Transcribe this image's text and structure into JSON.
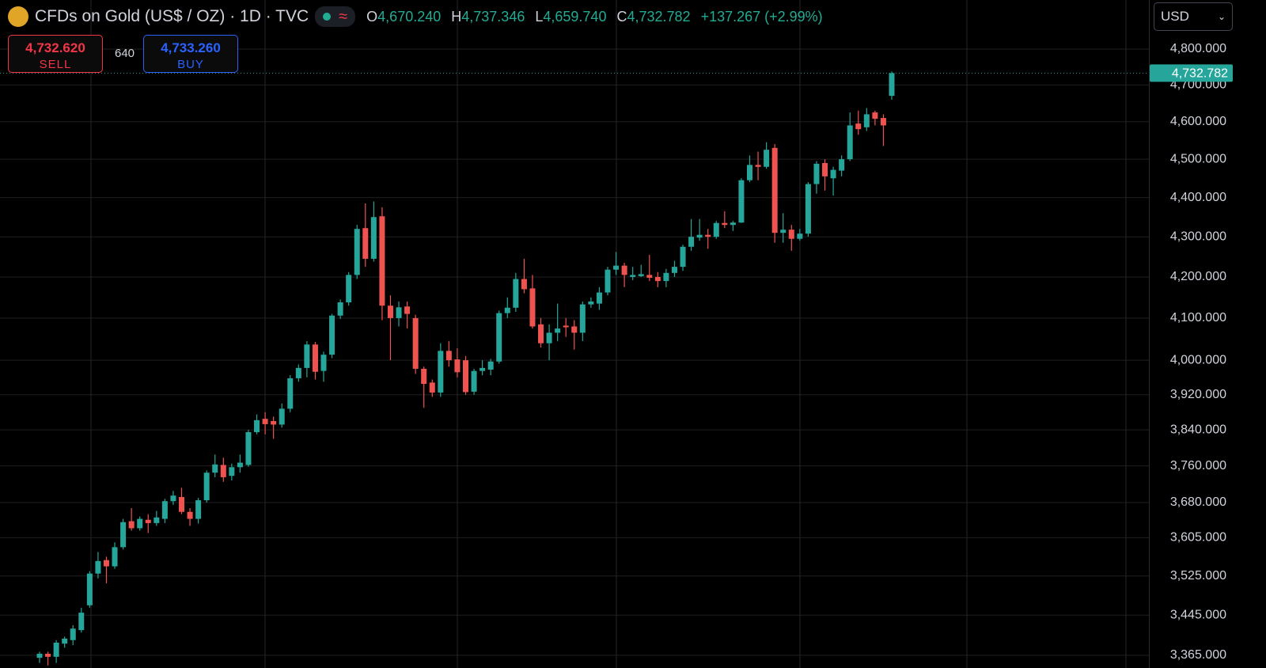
{
  "header": {
    "title": "CFDs on Gold (US$ / OZ) · 1D · TVC",
    "ohlc": [
      {
        "key": "O",
        "value": "4,670.240"
      },
      {
        "key": "H",
        "value": "4,737.346"
      },
      {
        "key": "L",
        "value": "4,659.740"
      },
      {
        "key": "C",
        "value": "4,732.782"
      }
    ],
    "change": "+137.267 (+2.99%)"
  },
  "trade": {
    "sell_price": "4,732.620",
    "sell": "SELL",
    "spread": "640",
    "buy_price": "4,733.260",
    "buy": "BUY"
  },
  "currency": "USD",
  "chart_data": {
    "type": "candlestick",
    "log_scale": true,
    "grid": true,
    "up_color": "#26a69a",
    "down_color": "#ef5350",
    "ylim": [
      3340,
      4940
    ],
    "yticks": [
      {
        "value": 3365,
        "label": "3,365.000"
      },
      {
        "value": 3445,
        "label": "3,445.000"
      },
      {
        "value": 3525,
        "label": "3,525.000"
      },
      {
        "value": 3605,
        "label": "3,605.000"
      },
      {
        "value": 3680,
        "label": "3,680.000"
      },
      {
        "value": 3760,
        "label": "3,760.000"
      },
      {
        "value": 3840,
        "label": "3,840.000"
      },
      {
        "value": 3920,
        "label": "3,920.000"
      },
      {
        "value": 4000,
        "label": "4,000.000"
      },
      {
        "value": 4100,
        "label": "4,100.000"
      },
      {
        "value": 4200,
        "label": "4,200.000"
      },
      {
        "value": 4300,
        "label": "4,300.000"
      },
      {
        "value": 4400,
        "label": "4,400.000"
      },
      {
        "value": 4500,
        "label": "4,500.000"
      },
      {
        "value": 4600,
        "label": "4,600.000"
      },
      {
        "value": 4700,
        "label": "4,700.000"
      },
      {
        "value": 4800,
        "label": "4,800.000"
      }
    ],
    "last_price": {
      "value": 4732.782,
      "label": "4,732.782"
    },
    "open": [
      3360,
      3368,
      3362,
      3388,
      3395,
      3415,
      3465,
      3530,
      3558,
      3545,
      3585,
      3640,
      3625,
      3643,
      3636,
      3645,
      3683,
      3692,
      3660,
      3645,
      3685,
      3745,
      3762,
      3738,
      3757,
      3762,
      3835,
      3865,
      3860,
      3852,
      3888,
      3958,
      3982,
      4037,
      3975,
      4013,
      4106,
      4138,
      4205,
      4322,
      4245,
      4352,
      4130,
      4100,
      4128,
      4100,
      3980,
      3948,
      3925,
      4022,
      4002,
      4000,
      3927,
      3975,
      3978,
      3997,
      4112,
      4125,
      4195,
      4172,
      4085,
      4040,
      4065,
      4082,
      4080,
      4065,
      4133,
      4135,
      4162,
      4218,
      4228,
      4200,
      4202,
      4205,
      4200,
      4190,
      4210,
      4225,
      4275,
      4298,
      4305,
      4300,
      4335,
      4330,
      4336,
      4445,
      4485,
      4480,
      4530,
      4310,
      4318,
      4295,
      4308,
      4435,
      4490,
      4450,
      4470,
      4500,
      4595,
      4585,
      4625,
      4610,
      4670.24
    ],
    "high": [
      3372,
      3372,
      3395,
      3402,
      3425,
      3460,
      3535,
      3575,
      3565,
      3595,
      3645,
      3668,
      3650,
      3655,
      3662,
      3688,
      3705,
      3712,
      3668,
      3690,
      3750,
      3785,
      3778,
      3765,
      3785,
      3840,
      3875,
      3880,
      3870,
      3900,
      3965,
      3990,
      4045,
      4043,
      4020,
      4110,
      4145,
      4212,
      4330,
      4385,
      4390,
      4375,
      4155,
      4140,
      4140,
      4108,
      3985,
      3955,
      4040,
      4045,
      4028,
      4010,
      3980,
      4000,
      4003,
      4118,
      4150,
      4210,
      4245,
      4205,
      4100,
      4085,
      4135,
      4100,
      4095,
      4140,
      4150,
      4175,
      4225,
      4262,
      4235,
      4225,
      4230,
      4255,
      4212,
      4220,
      4240,
      4280,
      4345,
      4345,
      4320,
      4340,
      4365,
      4340,
      4450,
      4510,
      4520,
      4545,
      4540,
      4360,
      4330,
      4320,
      4440,
      4495,
      4500,
      4480,
      4510,
      4625,
      4630,
      4637,
      4630,
      4620,
      4737.346
    ],
    "low": [
      3350,
      3345,
      3350,
      3380,
      3385,
      3410,
      3460,
      3520,
      3510,
      3540,
      3580,
      3620,
      3620,
      3615,
      3630,
      3636,
      3675,
      3655,
      3630,
      3635,
      3680,
      3735,
      3725,
      3728,
      3745,
      3758,
      3830,
      3830,
      3820,
      3845,
      3880,
      3950,
      3960,
      3955,
      3950,
      4005,
      4098,
      4130,
      4195,
      4225,
      4238,
      4095,
      4000,
      4080,
      4075,
      3968,
      3890,
      3915,
      3915,
      3985,
      3960,
      3920,
      3920,
      3965,
      3965,
      3992,
      4100,
      4115,
      4160,
      4075,
      4030,
      4000,
      4045,
      4055,
      4025,
      4045,
      4125,
      4120,
      4155,
      4205,
      4175,
      4192,
      4200,
      4190,
      4175,
      4175,
      4200,
      4215,
      4265,
      4290,
      4270,
      4295,
      4322,
      4315,
      4335,
      4440,
      4445,
      4475,
      4285,
      4285,
      4265,
      4290,
      4300,
      4410,
      4418,
      4405,
      4455,
      4495,
      4565,
      4575,
      4590,
      4535,
      4659.74
    ],
    "close": [
      3368,
      3362,
      3390,
      3398,
      3418,
      3450,
      3530,
      3556,
      3545,
      3585,
      3638,
      3625,
      3645,
      3636,
      3648,
      3683,
      3695,
      3660,
      3645,
      3685,
      3745,
      3763,
      3735,
      3757,
      3767,
      3835,
      3862,
      3853,
      3852,
      3888,
      3958,
      3982,
      4037,
      3973,
      4013,
      4106,
      4138,
      4205,
      4320,
      4245,
      4350,
      4130,
      4100,
      4126,
      4110,
      3980,
      3945,
      3925,
      4022,
      4000,
      3972,
      3926,
      3975,
      3982,
      3997,
      4112,
      4125,
      4195,
      4170,
      4080,
      4040,
      4065,
      4075,
      4078,
      4065,
      4133,
      4140,
      4162,
      4218,
      4228,
      4205,
      4205,
      4207,
      4198,
      4190,
      4210,
      4225,
      4275,
      4300,
      4305,
      4300,
      4335,
      4330,
      4336,
      4445,
      4485,
      4480,
      4525,
      4310,
      4318,
      4295,
      4308,
      4435,
      4488,
      4455,
      4472,
      4500,
      4590,
      4580,
      4620,
      4608,
      4590,
      4732.782
    ]
  }
}
